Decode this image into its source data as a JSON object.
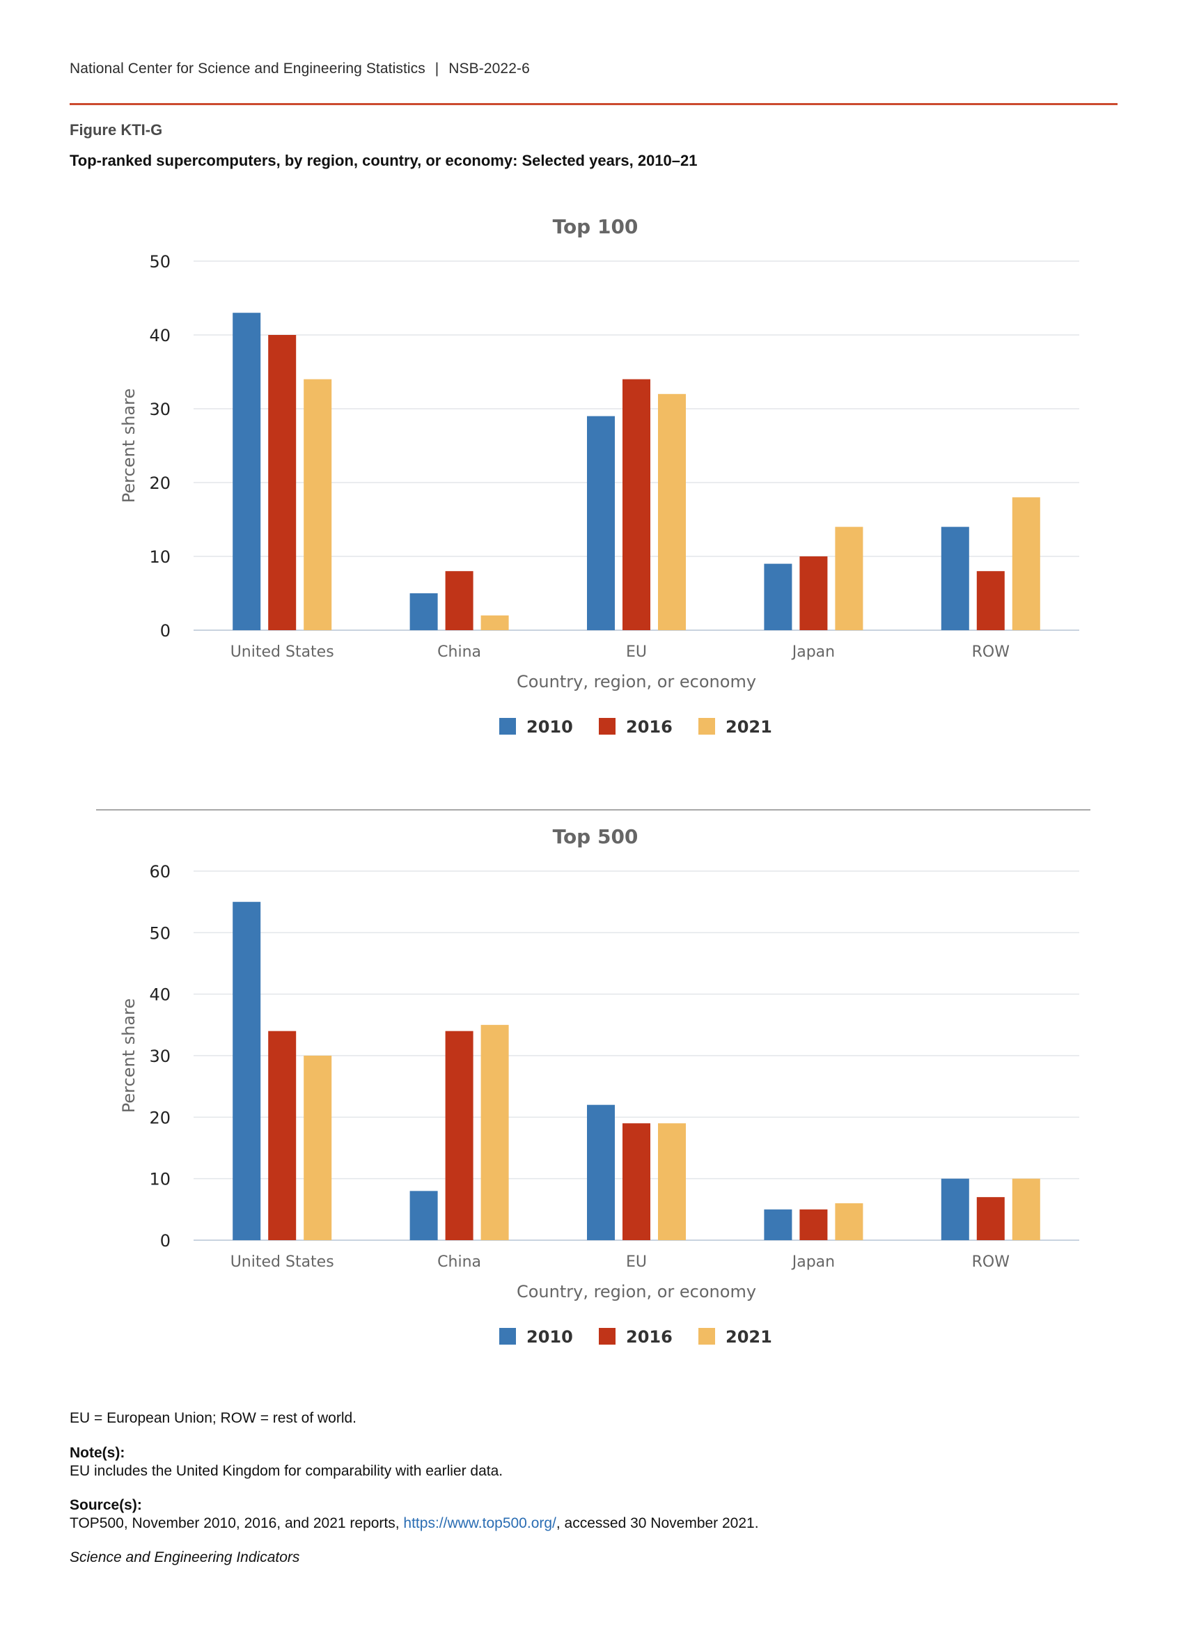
{
  "header": {
    "publisher": "National Center for Science and Engineering Statistics",
    "separator": "|",
    "report_id": "NSB-2022-6"
  },
  "figure": {
    "label": "Figure KTI-G",
    "title": "Top-ranked supercomputers, by region, country, or economy: Selected years, 2010–21"
  },
  "colors": {
    "accent_rule": "#cc4b2f",
    "series_2010": "#3b78b4",
    "series_2016": "#c03418",
    "series_2021": "#f2bc63"
  },
  "chart_data": [
    {
      "type": "bar",
      "title": "Top 100",
      "xlabel": "Country, region, or economy",
      "ylabel": "Percent share",
      "categories": [
        "United States",
        "China",
        "EU",
        "Japan",
        "ROW"
      ],
      "ylim": [
        0,
        50
      ],
      "yticks": [
        0,
        10,
        20,
        30,
        40,
        50
      ],
      "grid": true,
      "legend_position": "bottom-center",
      "series": [
        {
          "name": "2010",
          "color": "#3b78b4",
          "values": [
            43,
            5,
            29,
            9,
            14
          ]
        },
        {
          "name": "2016",
          "color": "#c03418",
          "values": [
            40,
            8,
            34,
            10,
            8
          ]
        },
        {
          "name": "2021",
          "color": "#f2bc63",
          "values": [
            34,
            2,
            32,
            14,
            18
          ]
        }
      ]
    },
    {
      "type": "bar",
      "title": "Top 500",
      "xlabel": "Country, region, or economy",
      "ylabel": "Percent share",
      "categories": [
        "United States",
        "China",
        "EU",
        "Japan",
        "ROW"
      ],
      "ylim": [
        0,
        60
      ],
      "yticks": [
        0,
        10,
        20,
        30,
        40,
        50,
        60
      ],
      "grid": true,
      "legend_position": "bottom-center",
      "series": [
        {
          "name": "2010",
          "color": "#3b78b4",
          "values": [
            55,
            8,
            22,
            5,
            10
          ]
        },
        {
          "name": "2016",
          "color": "#c03418",
          "values": [
            34,
            34,
            19,
            5,
            7
          ]
        },
        {
          "name": "2021",
          "color": "#f2bc63",
          "values": [
            30,
            35,
            19,
            6,
            10
          ]
        }
      ]
    }
  ],
  "footer": {
    "abbreviations": "EU = European Union; ROW = rest of world.",
    "note_heading": "Note(s):",
    "note_text": "EU includes the United Kingdom for comparability with earlier data.",
    "source_heading": "Source(s):",
    "source_prefix": "TOP500, November 2010, 2016, and 2021 reports, ",
    "source_link": "https://www.top500.org/",
    "source_suffix": ", accessed 30 November 2021.",
    "publication": "Science and Engineering Indicators"
  }
}
